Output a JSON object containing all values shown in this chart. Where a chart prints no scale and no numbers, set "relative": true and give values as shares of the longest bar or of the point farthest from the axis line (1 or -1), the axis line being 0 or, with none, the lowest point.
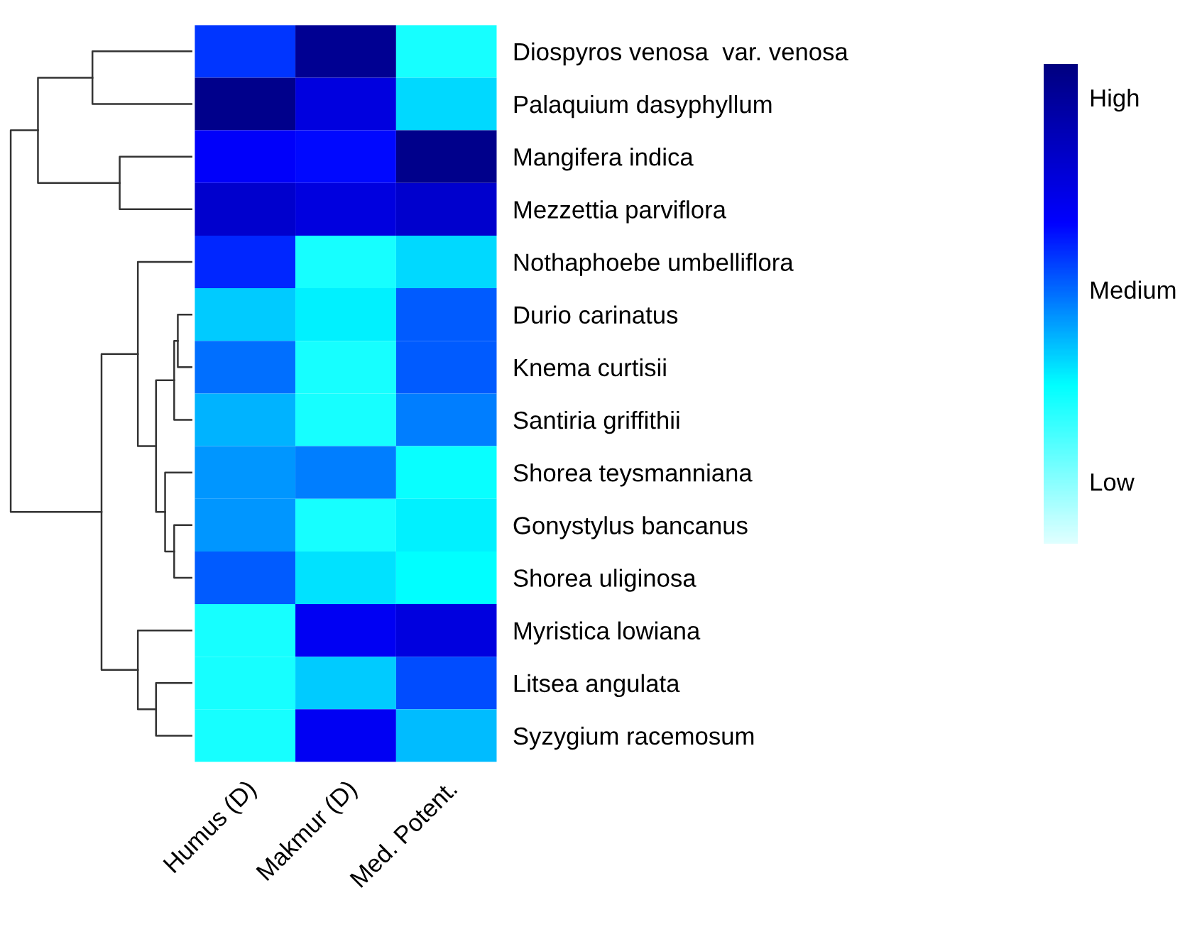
{
  "chart_data": {
    "type": "heatmap",
    "relative": true,
    "categories": [
      "Humus (D)",
      "Makmur (D)",
      "Med. Potent."
    ],
    "y_categories": [
      "Diospyros venosa  var. venosa",
      "Palaquium dasyphyllum",
      "Mangifera indica",
      "Mezzettia parviflora",
      "Nothaphoebe umbelliflora",
      "Durio carinatus",
      "Knema curtisii",
      "Santiria griffithii",
      "Shorea teysmanniana",
      "Gonystylus bancanus",
      "Shorea uliginosa",
      "Myristica lowiana",
      "Litsea angulata",
      "Syzygium racemosum"
    ],
    "cells": [
      [
        0.6,
        0.95,
        0.3
      ],
      [
        0.97,
        0.75,
        0.38
      ],
      [
        0.68,
        0.66,
        0.97
      ],
      [
        0.8,
        0.75,
        0.8
      ],
      [
        0.62,
        0.3,
        0.38
      ],
      [
        0.4,
        0.35,
        0.55
      ],
      [
        0.52,
        0.3,
        0.55
      ],
      [
        0.43,
        0.3,
        0.5
      ],
      [
        0.47,
        0.5,
        0.32
      ],
      [
        0.47,
        0.3,
        0.35
      ],
      [
        0.55,
        0.37,
        0.33
      ],
      [
        0.3,
        0.7,
        0.75
      ],
      [
        0.3,
        0.4,
        0.57
      ],
      [
        0.3,
        0.7,
        0.42
      ]
    ],
    "cticks": [
      {
        "value": 0.13,
        "label": "Low"
      },
      {
        "value": 0.53,
        "label": "Medium"
      },
      {
        "value": 0.93,
        "label": "High"
      }
    ]
  }
}
